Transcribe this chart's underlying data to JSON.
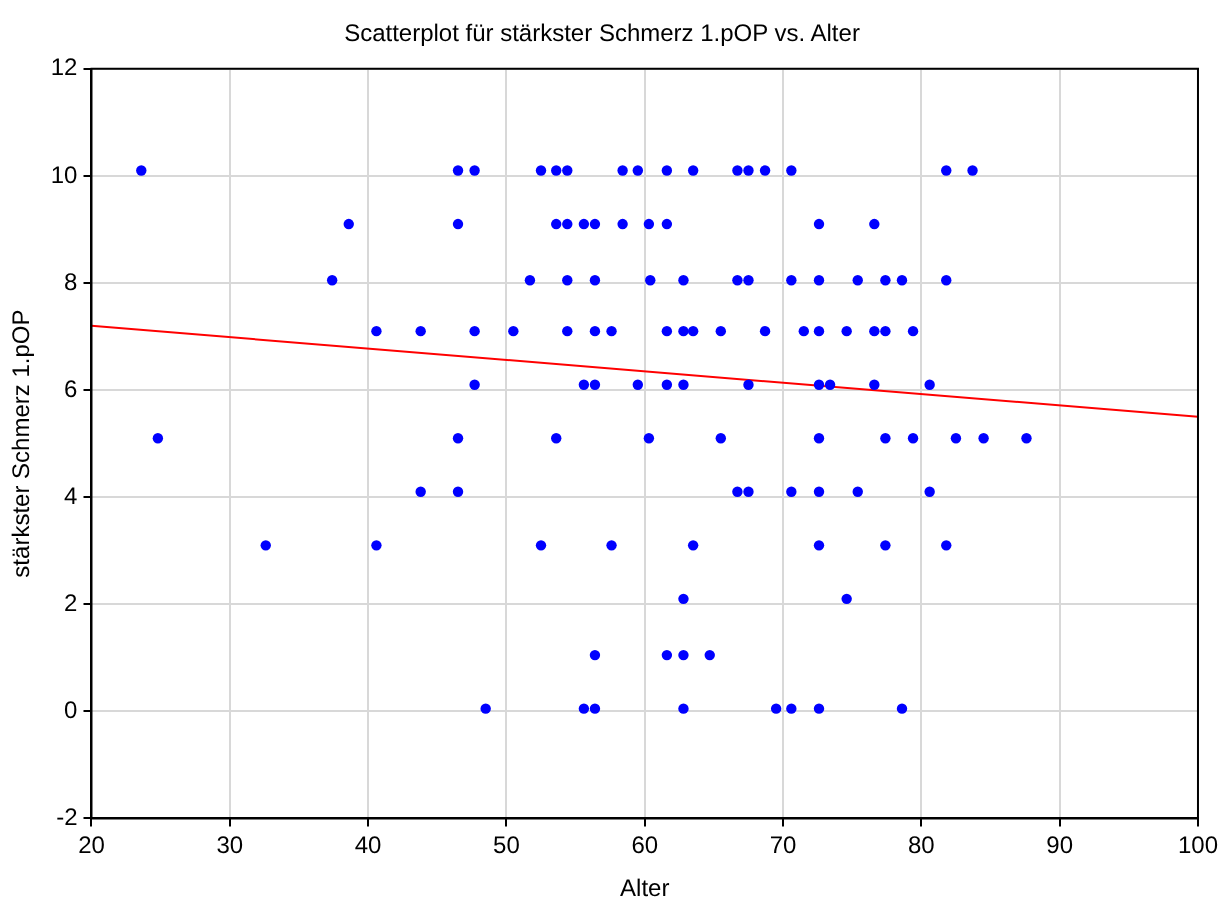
{
  "chart_data": {
    "type": "scatter",
    "title": "Scatterplot für stärkster Schmerz 1.pOP vs. Alter",
    "xlabel": "Alter",
    "ylabel": "stärkster Schmerz 1.pOP",
    "xlim": [
      20,
      100
    ],
    "xticks": [
      20,
      30,
      40,
      50,
      60,
      70,
      80,
      90,
      100
    ],
    "ylim": [
      -2,
      12
    ],
    "yticks": [
      -2,
      0,
      2,
      4,
      6,
      8,
      10,
      12
    ],
    "grid": true,
    "legend": false,
    "series": [
      {
        "marker": "circle",
        "color": "#0000ff",
        "x": [
          23.6,
          46.5,
          47.7,
          52.5,
          53.6,
          54.4,
          58.4,
          59.5,
          61.6,
          63.5,
          66.7,
          67.5,
          68.7,
          70.6,
          81.8,
          83.7,
          38.6,
          46.5,
          53.6,
          54.4,
          55.6,
          56.4,
          58.4,
          60.3,
          61.6,
          72.6,
          76.6,
          37.4,
          51.7,
          54.4,
          56.4,
          60.4,
          62.8,
          66.7,
          67.5,
          70.6,
          72.6,
          75.4,
          77.4,
          78.6,
          81.8,
          40.6,
          43.8,
          47.7,
          50.5,
          54.4,
          56.4,
          57.6,
          61.6,
          62.8,
          63.5,
          65.5,
          68.7,
          71.5,
          72.6,
          74.6,
          76.6,
          77.4,
          79.4,
          47.7,
          55.6,
          56.4,
          59.5,
          61.6,
          62.8,
          67.5,
          72.6,
          73.4,
          76.6,
          80.6,
          24.8,
          46.5,
          53.6,
          60.3,
          65.5,
          72.6,
          77.4,
          79.4,
          82.5,
          84.5,
          87.6,
          43.8,
          46.5,
          66.7,
          67.5,
          70.6,
          72.6,
          75.4,
          80.6,
          32.6,
          40.6,
          52.5,
          57.6,
          63.5,
          72.6,
          77.4,
          81.8,
          62.8,
          74.6,
          56.4,
          61.6,
          62.8,
          64.7,
          48.5,
          55.6,
          56.4,
          62.8,
          69.5,
          70.6,
          72.6,
          78.6
        ],
        "values": [
          10.1,
          10.1,
          10.1,
          10.1,
          10.1,
          10.1,
          10.1,
          10.1,
          10.1,
          10.1,
          10.1,
          10.1,
          10.1,
          10.1,
          10.1,
          10.1,
          9.1,
          9.1,
          9.1,
          9.1,
          9.1,
          9.1,
          9.1,
          9.1,
          9.1,
          9.1,
          9.1,
          8.05,
          8.05,
          8.05,
          8.05,
          8.05,
          8.05,
          8.05,
          8.05,
          8.05,
          8.05,
          8.05,
          8.05,
          8.05,
          8.05,
          7.1,
          7.1,
          7.1,
          7.1,
          7.1,
          7.1,
          7.1,
          7.1,
          7.1,
          7.1,
          7.1,
          7.1,
          7.1,
          7.1,
          7.1,
          7.1,
          7.1,
          7.1,
          6.1,
          6.1,
          6.1,
          6.1,
          6.1,
          6.1,
          6.1,
          6.1,
          6.1,
          6.1,
          6.1,
          5.1,
          5.1,
          5.1,
          5.1,
          5.1,
          5.1,
          5.1,
          5.1,
          5.1,
          5.1,
          5.1,
          4.1,
          4.1,
          4.1,
          4.1,
          4.1,
          4.1,
          4.1,
          4.1,
          3.1,
          3.1,
          3.1,
          3.1,
          3.1,
          3.1,
          3.1,
          3.1,
          2.1,
          2.1,
          1.05,
          1.05,
          1.05,
          1.05,
          0.05,
          0.05,
          0.05,
          0.05,
          0.05,
          0.05,
          0.05,
          0.05
        ]
      },
      {
        "type": "line",
        "marker": "none",
        "color": "#ff0000",
        "x": [
          20,
          100
        ],
        "values": [
          7.2,
          5.5
        ]
      }
    ]
  }
}
